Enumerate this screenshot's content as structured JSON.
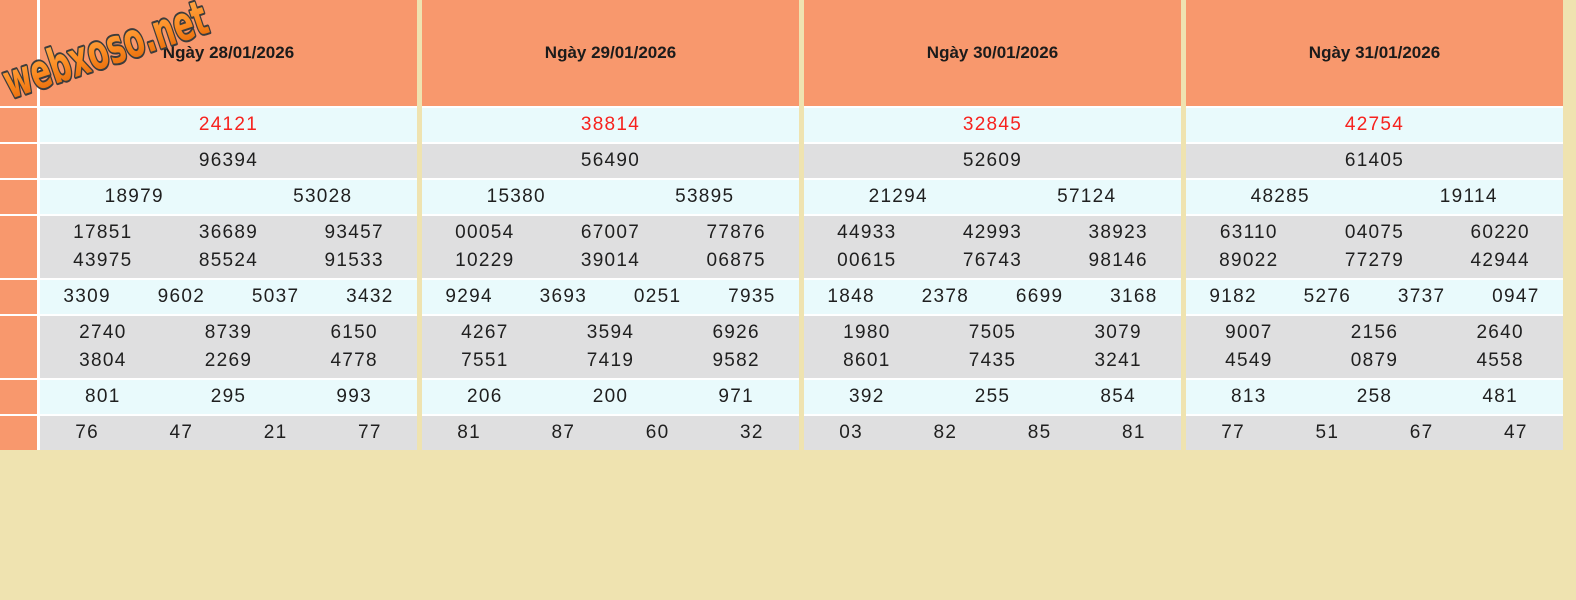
{
  "watermark": "webxoso.net",
  "colors": {
    "header_orange": "#F8986D",
    "row_cyan": "#E9FAFC",
    "row_gray": "#DFDFE0",
    "page_tan": "#EFE3B0",
    "special_red": "#F7221E",
    "text_dark": "#1F1F1F"
  },
  "columns": [
    {
      "date": "Ngày 28/01/2026",
      "special": "24121",
      "prize1": "96394",
      "prize2": [
        "18979",
        "53028"
      ],
      "prize3": [
        [
          "17851",
          "36689",
          "93457"
        ],
        [
          "43975",
          "85524",
          "91533"
        ]
      ],
      "prize4": [
        "3309",
        "9602",
        "5037",
        "3432"
      ],
      "prize5": [
        [
          "2740",
          "8739",
          "6150"
        ],
        [
          "3804",
          "2269",
          "4778"
        ]
      ],
      "prize6": [
        "801",
        "295",
        "993"
      ],
      "prize7": [
        "76",
        "47",
        "21",
        "77"
      ]
    },
    {
      "date": "Ngày 29/01/2026",
      "special": "38814",
      "prize1": "56490",
      "prize2": [
        "15380",
        "53895"
      ],
      "prize3": [
        [
          "00054",
          "67007",
          "77876"
        ],
        [
          "10229",
          "39014",
          "06875"
        ]
      ],
      "prize4": [
        "9294",
        "3693",
        "0251",
        "7935"
      ],
      "prize5": [
        [
          "4267",
          "3594",
          "6926"
        ],
        [
          "7551",
          "7419",
          "9582"
        ]
      ],
      "prize6": [
        "206",
        "200",
        "971"
      ],
      "prize7": [
        "81",
        "87",
        "60",
        "32"
      ]
    },
    {
      "date": "Ngày 30/01/2026",
      "special": "32845",
      "prize1": "52609",
      "prize2": [
        "21294",
        "57124"
      ],
      "prize3": [
        [
          "44933",
          "42993",
          "38923"
        ],
        [
          "00615",
          "76743",
          "98146"
        ]
      ],
      "prize4": [
        "1848",
        "2378",
        "6699",
        "3168"
      ],
      "prize5": [
        [
          "1980",
          "7505",
          "3079"
        ],
        [
          "8601",
          "7435",
          "3241"
        ]
      ],
      "prize6": [
        "392",
        "255",
        "854"
      ],
      "prize7": [
        "03",
        "82",
        "85",
        "81"
      ]
    },
    {
      "date": "Ngày 31/01/2026",
      "special": "42754",
      "prize1": "61405",
      "prize2": [
        "48285",
        "19114"
      ],
      "prize3": [
        [
          "63110",
          "04075",
          "60220"
        ],
        [
          "89022",
          "77279",
          "42944"
        ]
      ],
      "prize4": [
        "9182",
        "5276",
        "3737",
        "0947"
      ],
      "prize5": [
        [
          "9007",
          "2156",
          "2640"
        ],
        [
          "4549",
          "0879",
          "4558"
        ]
      ],
      "prize6": [
        "813",
        "258",
        "481"
      ],
      "prize7": [
        "77",
        "51",
        "67",
        "47"
      ]
    }
  ]
}
